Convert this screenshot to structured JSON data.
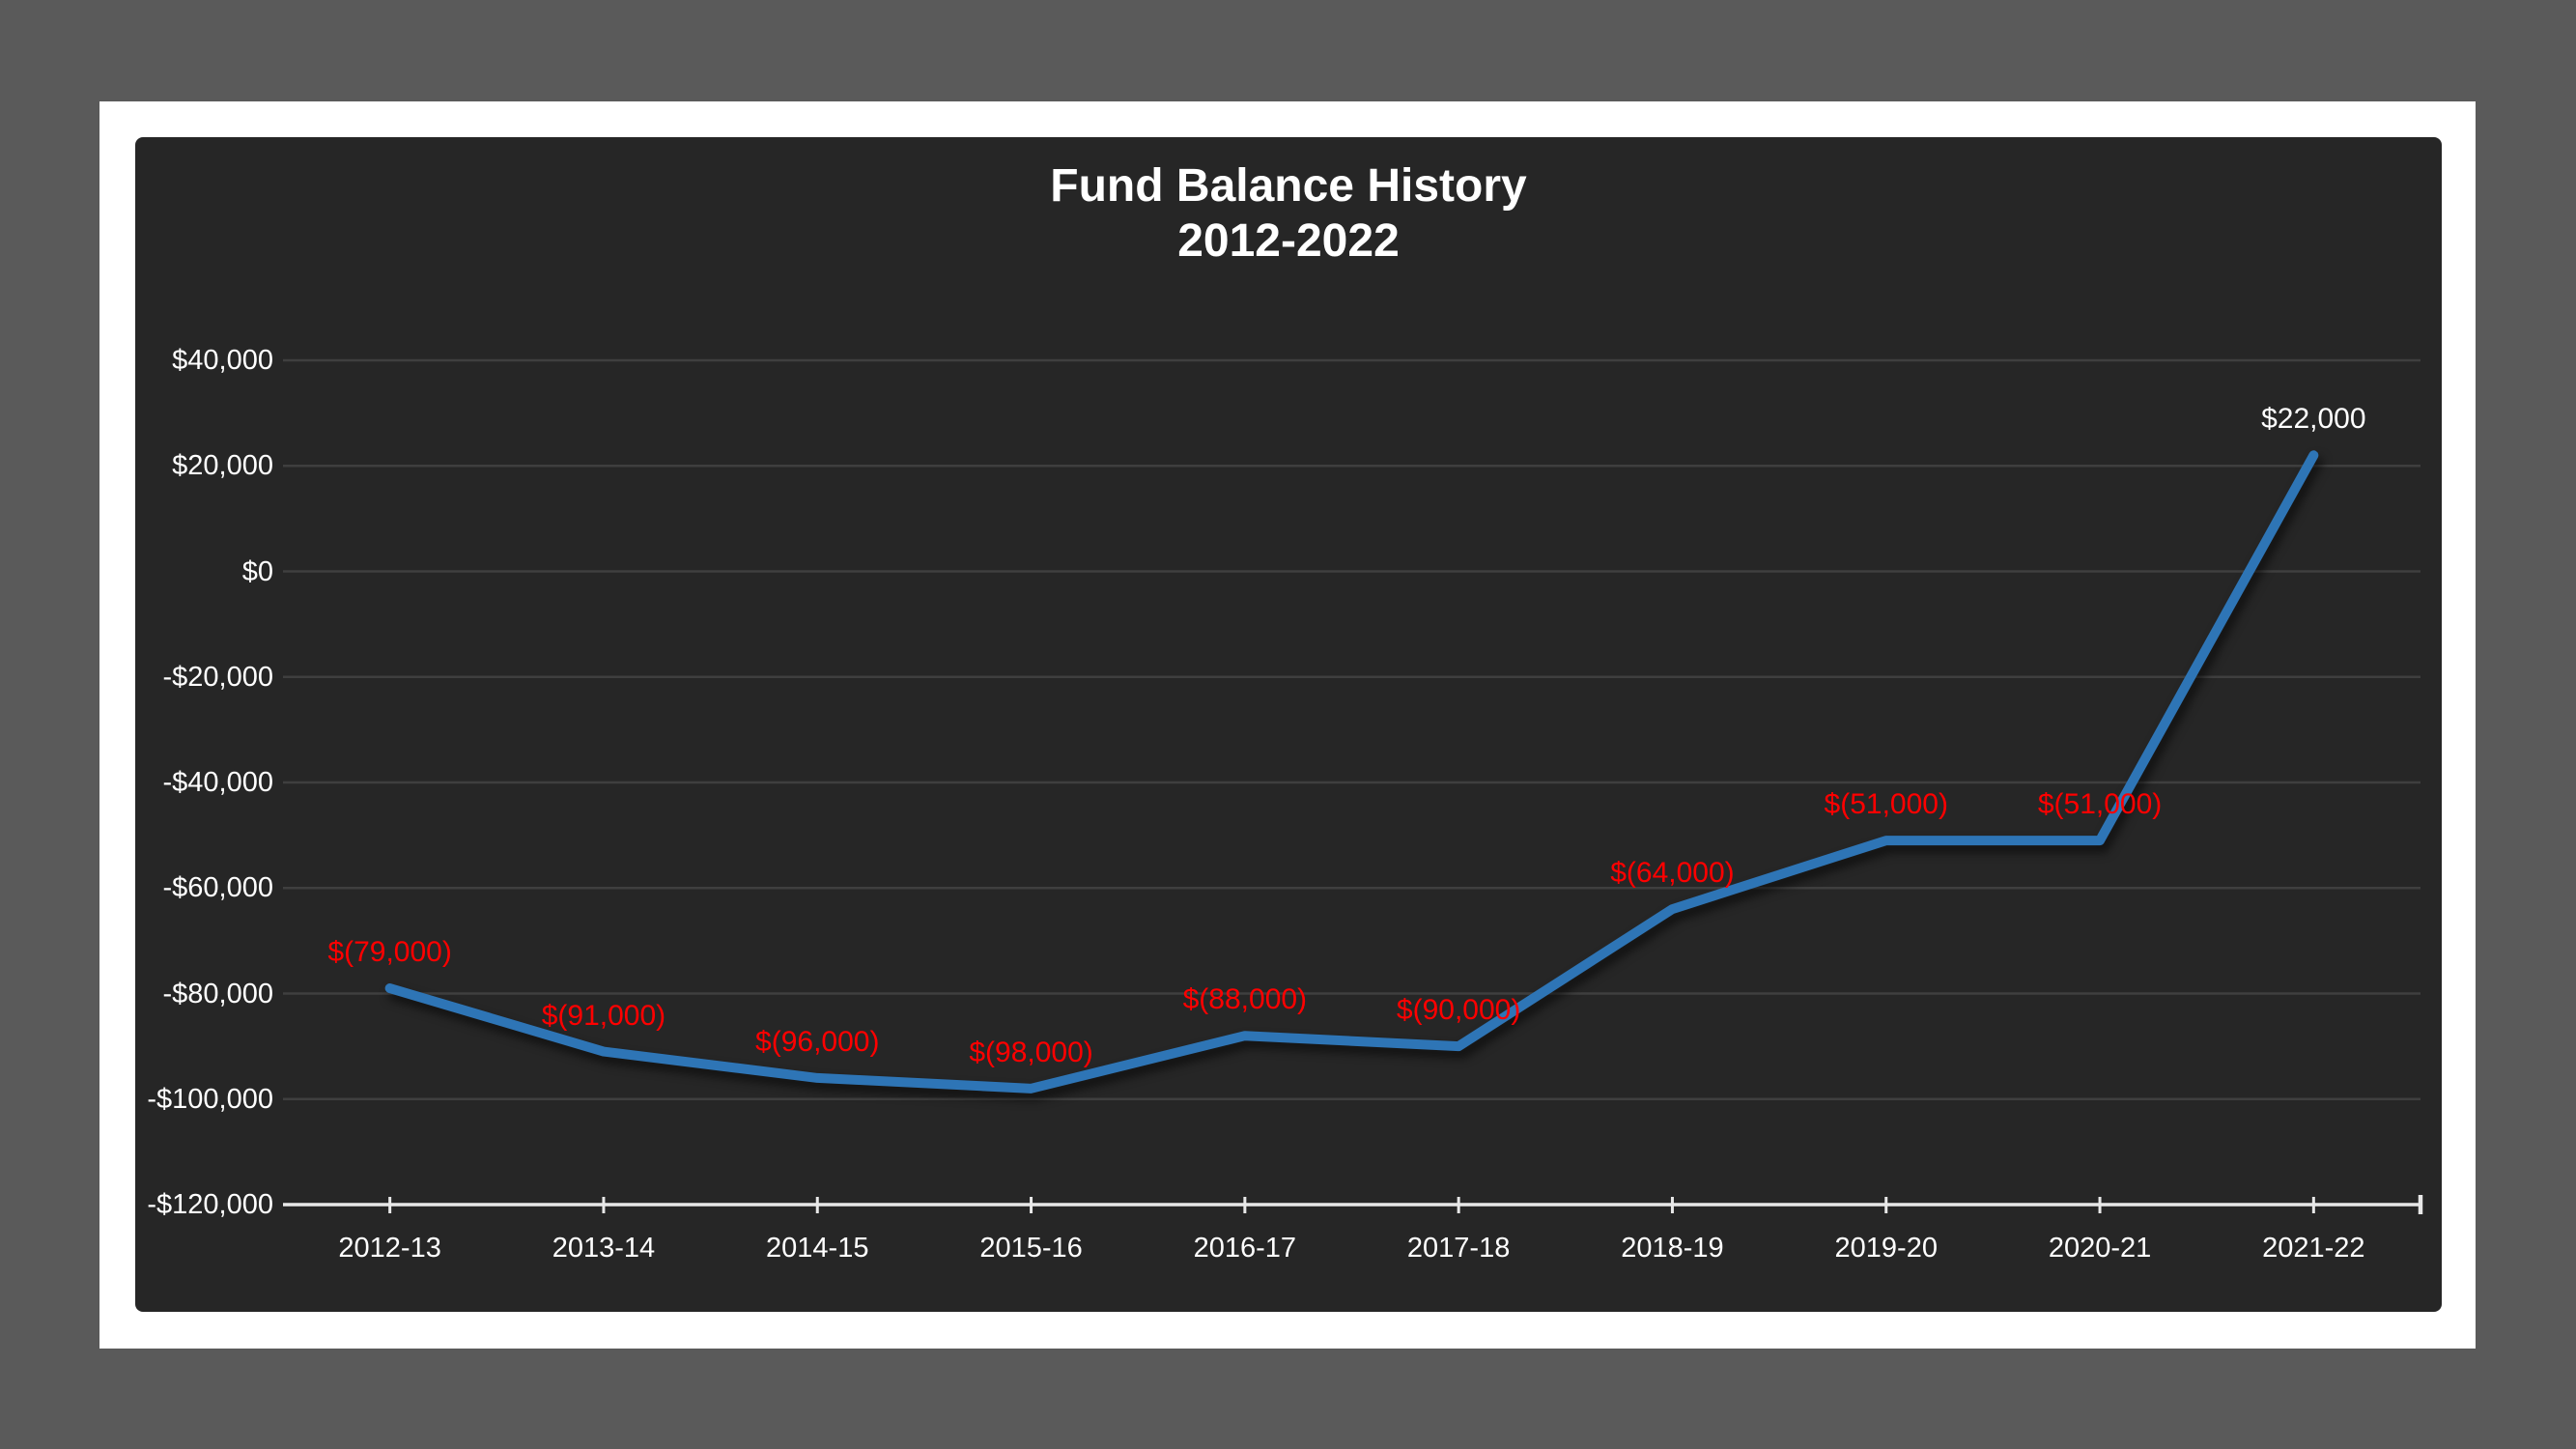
{
  "chart_data": {
    "type": "line",
    "title": "Fund Balance History",
    "subtitle": "2012-2022",
    "xlabel": "",
    "ylabel": "",
    "categories": [
      "2012-13",
      "2013-14",
      "2014-15",
      "2015-16",
      "2016-17",
      "2017-18",
      "2018-19",
      "2019-20",
      "2020-21",
      "2021-22"
    ],
    "values": [
      -79000,
      -91000,
      -96000,
      -98000,
      -88000,
      -90000,
      -64000,
      -51000,
      -51000,
      22000
    ],
    "data_labels": [
      "$(79,000)",
      "$(91,000)",
      "$(96,000)",
      "$(98,000)",
      "$(88,000)",
      "$(90,000)",
      "$(64,000)",
      "$(51,000)",
      "$(51,000)",
      "$22,000"
    ],
    "ylim": [
      -120000,
      40000
    ],
    "y_tick_values": [
      40000,
      20000,
      0,
      -20000,
      -40000,
      -60000,
      -80000,
      -100000,
      -120000
    ],
    "y_tick_labels": [
      "$40,000",
      "$20,000",
      "$0",
      "-$20,000",
      "-$40,000",
      "-$60,000",
      "-$80,000",
      "-$100,000",
      "-$120,000"
    ],
    "grid": true,
    "legend": "none",
    "colors": {
      "line": "#2E75B6",
      "label_negative": "#FF0000",
      "label_positive": "#FFFFFF",
      "panel_background": "#262626",
      "gridline": "#3F3F3F",
      "axis": "#E8E8E8",
      "tick_label": "#FFFFFF",
      "frame": "#FFFFFF",
      "backdrop": "#5A5A5A",
      "title": "#FFFFFF"
    }
  }
}
